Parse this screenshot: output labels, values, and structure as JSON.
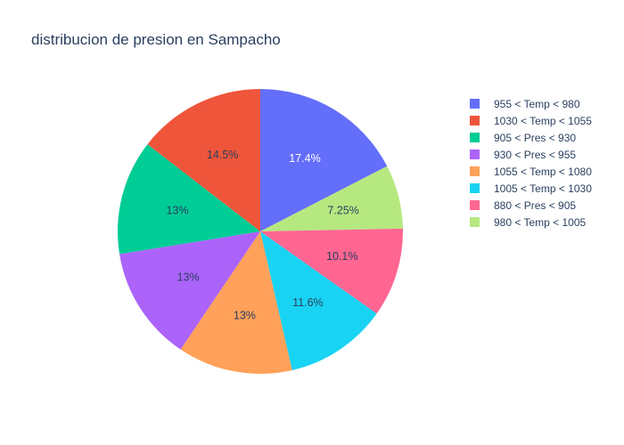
{
  "chart_data": {
    "type": "pie",
    "title": "distribucion de presion en Sampacho",
    "labels": [
      "955 < Temp < 980",
      "980 < Temp < 1005",
      "880 < Pres < 905",
      "1005 < Temp < 1030",
      "1055 < Temp < 1080",
      "930 < Pres < 955",
      "905 < Pres < 930",
      "1030 < Temp < 1055"
    ],
    "percent_labels": [
      "17.4%",
      "7.25%",
      "10.1%",
      "11.6%",
      "13%",
      "13%",
      "13%",
      "14.5%"
    ],
    "values": [
      17.4,
      7.25,
      10.1,
      11.6,
      13.0,
      13.0,
      13.0,
      14.5
    ],
    "colors": [
      "#636efa",
      "#b6e880",
      "#ff6692",
      "#19d3f3",
      "#ffa15a",
      "#ab63fa",
      "#00cc96",
      "#ef553b"
    ],
    "label_colors": [
      "#ffffff",
      "#2a3f5f",
      "#2a3f5f",
      "#2a3f5f",
      "#2a3f5f",
      "#2a3f5f",
      "#2a3f5f",
      "#2a3f5f"
    ],
    "legend": {
      "placement": "top-right",
      "items": [
        {
          "label": "955 < Temp < 980",
          "color": "#636efa"
        },
        {
          "label": "1030 < Temp < 1055",
          "color": "#ef553b"
        },
        {
          "label": "905 < Pres < 930",
          "color": "#00cc96"
        },
        {
          "label": "930 < Pres < 955",
          "color": "#ab63fa"
        },
        {
          "label": "1055 < Temp < 1080",
          "color": "#ffa15a"
        },
        {
          "label": "1005 < Temp < 1030",
          "color": "#19d3f3"
        },
        {
          "label": "880 < Pres < 905",
          "color": "#ff6692"
        },
        {
          "label": "980 < Temp < 1005",
          "color": "#b6e880"
        }
      ]
    }
  }
}
